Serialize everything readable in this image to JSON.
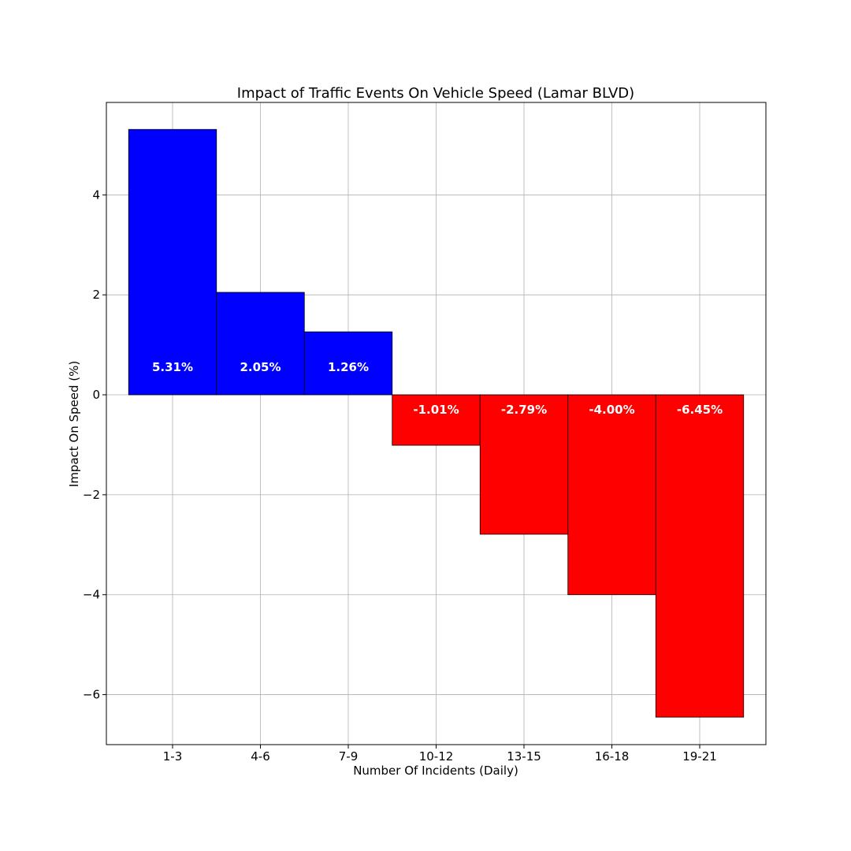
{
  "chart_data": {
    "type": "bar",
    "title": "Impact of Traffic Events On Vehicle Speed (Lamar BLVD)",
    "xlabel": "Number Of Incidents (Daily)",
    "ylabel": "Impact On Speed (%)",
    "categories": [
      "1-3",
      "4-6",
      "7-9",
      "10-12",
      "13-15",
      "16-18",
      "19-21"
    ],
    "values": [
      5.31,
      2.05,
      1.26,
      -1.01,
      -2.79,
      -4.0,
      -6.45
    ],
    "data_labels": [
      "5.31%",
      "2.05%",
      "1.26%",
      "-1.01%",
      "-2.79%",
      "-4.00%",
      "-6.45%"
    ],
    "ylim": [
      -7.0,
      5.85
    ],
    "yticks": [
      -6,
      -4,
      -2,
      0,
      2,
      4
    ],
    "ytick_labels": [
      "−6",
      "−4",
      "−2",
      "0",
      "2",
      "4"
    ],
    "grid": true,
    "colors": {
      "positive": "#0000ff",
      "negative": "#ff0000"
    }
  }
}
